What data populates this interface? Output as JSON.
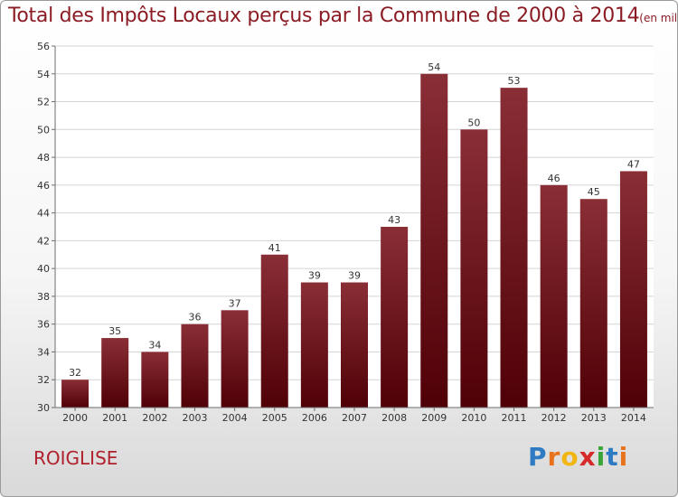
{
  "header": {
    "title": "Total des Impôts Locaux perçus par la Commune de 2000 à 2014",
    "unit": "(en milliers d'€)"
  },
  "commune": "ROIGLISE",
  "logo": {
    "text": "Proxiti",
    "letter_colors": [
      "#2e7bc4",
      "#e8731c",
      "#f2b614",
      "#d62a2a",
      "#3aa63a",
      "#2e7bc4",
      "#e8731c"
    ]
  },
  "colors": {
    "bar_top": "#8a2e36",
    "bar_bottom": "#4f0006",
    "title": "#8b1c24",
    "commune": "#b0202c",
    "grid": "#d4d4d4",
    "axis": "#6e6e6e"
  },
  "chart_data": {
    "type": "bar",
    "title": "Total des Impôts Locaux perçus par la Commune de 2000 à 2014",
    "categories": [
      "2000",
      "2001",
      "2002",
      "2003",
      "2004",
      "2005",
      "2006",
      "2007",
      "2008",
      "2009",
      "2010",
      "2011",
      "2012",
      "2013",
      "2014"
    ],
    "values": [
      32,
      35,
      34,
      36,
      37,
      41,
      39,
      39,
      43,
      54,
      50,
      53,
      46,
      45,
      47
    ],
    "ylim": [
      30,
      56
    ],
    "yticks": [
      30,
      32,
      34,
      36,
      38,
      40,
      42,
      44,
      46,
      48,
      50,
      52,
      54,
      56
    ],
    "grid": true,
    "data_labels": true
  }
}
